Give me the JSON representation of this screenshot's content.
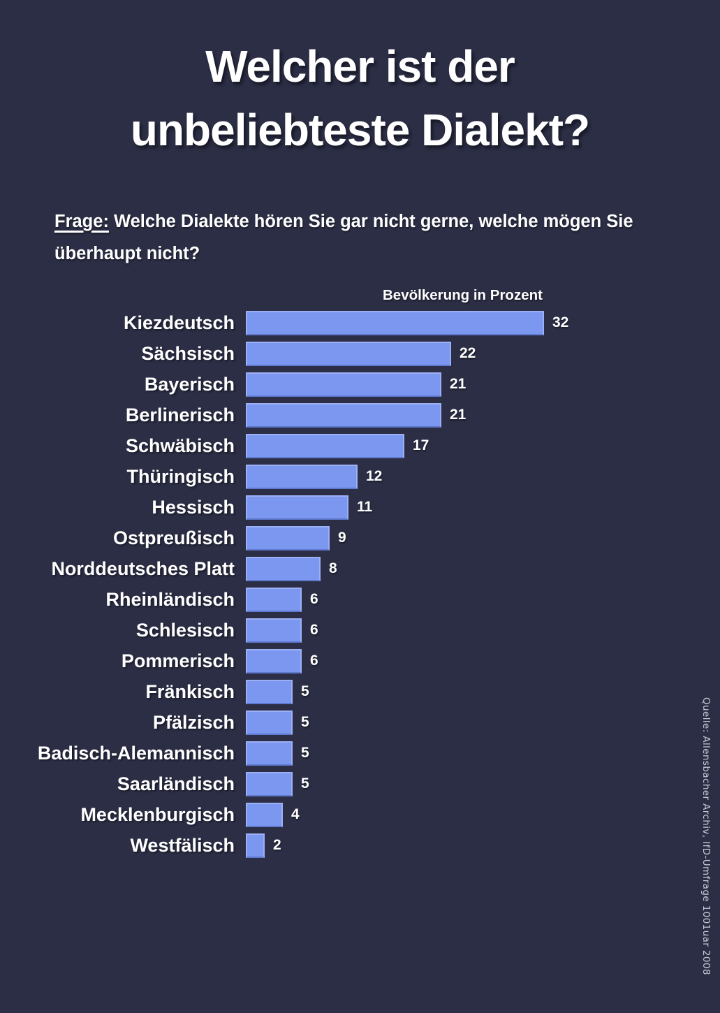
{
  "poster": {
    "background_color": "#2c2e45",
    "text_color": "#ffffff"
  },
  "title": {
    "line1": "Welcher ist der",
    "line2": "unbeliebteste Dialekt?"
  },
  "question": {
    "label": "Frage:",
    "text": " Welche Dialekte hören Sie gar nicht gerne, welche mögen Sie überhaupt nicht?"
  },
  "chart_data": {
    "type": "bar",
    "orientation": "horizontal",
    "title": "Welcher ist der unbeliebteste Dialekt?",
    "axis_header": "Bevölkerung in Prozent",
    "xlabel": "Bevölkerung in Prozent",
    "ylabel": "",
    "categories": [
      "Kiezdeutsch",
      "Sächsisch",
      "Bayerisch",
      "Berlinerisch",
      "Schwäbisch",
      "Thüringisch",
      "Hessisch",
      "Ostpreußisch",
      "Norddeutsches Platt",
      "Rheinländisch",
      "Schlesisch",
      "Pommerisch",
      "Fränkisch",
      "Pfälzisch",
      "Badisch-Alemannisch",
      "Saarländisch",
      "Mecklenburgisch",
      "Westfälisch"
    ],
    "values": [
      32,
      22,
      21,
      21,
      17,
      12,
      11,
      9,
      8,
      6,
      6,
      6,
      5,
      5,
      5,
      5,
      4,
      2
    ],
    "xlim": [
      0,
      32
    ],
    "bar_color": "#7b97f0",
    "bar_border_color": "#9db0f6",
    "value_labels": true,
    "grid": false,
    "legend": false
  },
  "source": {
    "text": "Quelle: Allensbacher Archiv, IfD-Umfrage 1001uar 2008"
  }
}
